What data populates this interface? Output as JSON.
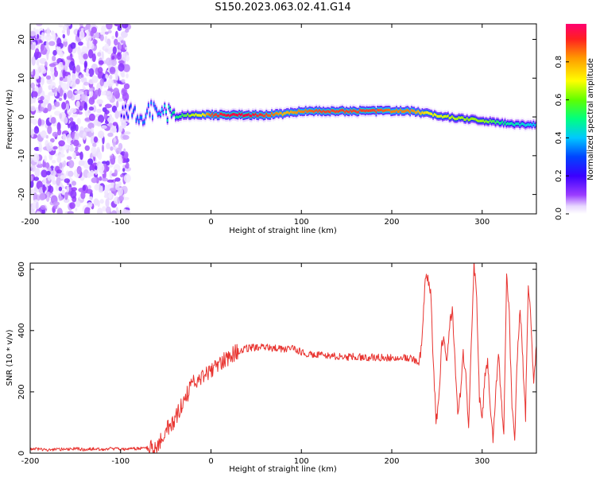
{
  "title": "S150.2023.063.02.41.G14",
  "chart_data": [
    {
      "type": "heatmap",
      "xlabel": "Height of straight line (km)",
      "ylabel": "Frequency (Hz)",
      "xlim": [
        -200,
        360
      ],
      "ylim": [
        -25,
        24
      ],
      "xticks": [
        -200,
        -100,
        0,
        100,
        200,
        300
      ],
      "yticks": [
        -20,
        -10,
        0,
        10,
        20
      ],
      "colorbar": {
        "label": "Normalized spectral amplitude",
        "range": [
          0,
          1
        ],
        "ticks": [
          0.0,
          0.2,
          0.4,
          0.6,
          0.8
        ],
        "tick_labels": [
          "0.0",
          "0.2",
          "0.4",
          "0.6",
          "0.8"
        ],
        "colormap": [
          "#ffffff",
          "#e8d8ff",
          "#9a3cff",
          "#3a00ff",
          "#0033ff",
          "#00c8ff",
          "#00ff80",
          "#a0ff00",
          "#ffff00",
          "#ff8000",
          "#ff0040"
        ]
      },
      "noise_region": [
        -200,
        -92
      ],
      "ridge": [
        {
          "x": -100,
          "y": 1,
          "amp": 0.3
        },
        {
          "x": -90,
          "y": 2,
          "amp": 0.4
        },
        {
          "x": -80,
          "y": -1,
          "amp": 0.45
        },
        {
          "x": -70,
          "y": 2,
          "amp": 0.45
        },
        {
          "x": -60,
          "y": 1,
          "amp": 0.45
        },
        {
          "x": -50,
          "y": 1,
          "amp": 0.55
        },
        {
          "x": -40,
          "y": 0,
          "amp": 0.6
        },
        {
          "x": -30,
          "y": 0.5,
          "amp": 0.65
        },
        {
          "x": -20,
          "y": 0.5,
          "amp": 0.75
        },
        {
          "x": -10,
          "y": 0.5,
          "amp": 0.8
        },
        {
          "x": 0,
          "y": 0.5,
          "amp": 0.95
        },
        {
          "x": 20,
          "y": 0.5,
          "amp": 1.0
        },
        {
          "x": 40,
          "y": 0.5,
          "amp": 1.0
        },
        {
          "x": 60,
          "y": 0.5,
          "amp": 0.95
        },
        {
          "x": 80,
          "y": 0.8,
          "amp": 0.85
        },
        {
          "x": 100,
          "y": 1.5,
          "amp": 0.9
        },
        {
          "x": 120,
          "y": 1.5,
          "amp": 0.95
        },
        {
          "x": 140,
          "y": 1.5,
          "amp": 0.95
        },
        {
          "x": 160,
          "y": 1.5,
          "amp": 0.95
        },
        {
          "x": 180,
          "y": 1.5,
          "amp": 0.95
        },
        {
          "x": 200,
          "y": 1.5,
          "amp": 0.9
        },
        {
          "x": 220,
          "y": 1.5,
          "amp": 0.9
        },
        {
          "x": 240,
          "y": 0.8,
          "amp": 0.8
        },
        {
          "x": 260,
          "y": 0,
          "amp": 0.75
        },
        {
          "x": 280,
          "y": -0.5,
          "amp": 0.7
        },
        {
          "x": 300,
          "y": -1,
          "amp": 0.7
        },
        {
          "x": 320,
          "y": -1.5,
          "amp": 0.6
        },
        {
          "x": 340,
          "y": -2,
          "amp": 0.55
        },
        {
          "x": 360,
          "y": -2,
          "amp": 0.5
        }
      ]
    },
    {
      "type": "line",
      "xlabel": "Height of straight line (km)",
      "ylabel": "SNR (10 * v/v)",
      "xlim": [
        -200,
        360
      ],
      "ylim": [
        0,
        620
      ],
      "xticks": [
        -200,
        -100,
        0,
        100,
        200,
        300
      ],
      "yticks": [
        0,
        200,
        400,
        600
      ],
      "series": [
        {
          "color": "#e8332f",
          "points": [
            [
              -200,
              12
            ],
            [
              -190,
              14
            ],
            [
              -180,
              10
            ],
            [
              -170,
              13
            ],
            [
              -160,
              12
            ],
            [
              -150,
              15
            ],
            [
              -140,
              11
            ],
            [
              -130,
              14
            ],
            [
              -120,
              12
            ],
            [
              -110,
              15
            ],
            [
              -100,
              13
            ],
            [
              -90,
              14
            ],
            [
              -80,
              15
            ],
            [
              -70,
              18
            ],
            [
              -65,
              20
            ],
            [
              -60,
              30
            ],
            [
              -55,
              45
            ],
            [
              -50,
              70
            ],
            [
              -45,
              90
            ],
            [
              -40,
              110
            ],
            [
              -35,
              140
            ],
            [
              -30,
              170
            ],
            [
              -25,
              200
            ],
            [
              -20,
              225
            ],
            [
              -15,
              240
            ],
            [
              -10,
              250
            ],
            [
              -5,
              258
            ],
            [
              0,
              265
            ],
            [
              5,
              280
            ],
            [
              10,
              295
            ],
            [
              15,
              305
            ],
            [
              20,
              315
            ],
            [
              25,
              325
            ],
            [
              30,
              333
            ],
            [
              35,
              338
            ],
            [
              40,
              342
            ],
            [
              50,
              345
            ],
            [
              60,
              345
            ],
            [
              70,
              343
            ],
            [
              80,
              340
            ],
            [
              90,
              340
            ],
            [
              100,
              330
            ],
            [
              110,
              322
            ],
            [
              120,
              320
            ],
            [
              130,
              318
            ],
            [
              140,
              315
            ],
            [
              150,
              313
            ],
            [
              160,
              315
            ],
            [
              170,
              312
            ],
            [
              180,
              313
            ],
            [
              190,
              312
            ],
            [
              200,
              312
            ],
            [
              210,
              312
            ],
            [
              220,
              310
            ],
            [
              225,
              305
            ],
            [
              230,
              290
            ],
            [
              233,
              350
            ],
            [
              237,
              560
            ],
            [
              240,
              575
            ],
            [
              243,
              520
            ],
            [
              246,
              300
            ],
            [
              249,
              100
            ],
            [
              252,
              160
            ],
            [
              255,
              350
            ],
            [
              258,
              380
            ],
            [
              261,
              300
            ],
            [
              264,
              420
            ],
            [
              267,
              470
            ],
            [
              270,
              300
            ],
            [
              273,
              120
            ],
            [
              276,
              200
            ],
            [
              279,
              330
            ],
            [
              282,
              250
            ],
            [
              285,
              80
            ],
            [
              288,
              350
            ],
            [
              291,
              620
            ],
            [
              294,
              500
            ],
            [
              297,
              180
            ],
            [
              300,
              100
            ],
            [
              303,
              260
            ],
            [
              306,
              300
            ],
            [
              309,
              160
            ],
            [
              312,
              40
            ],
            [
              315,
              200
            ],
            [
              318,
              330
            ],
            [
              321,
              180
            ],
            [
              324,
              60
            ],
            [
              327,
              580
            ],
            [
              330,
              450
            ],
            [
              333,
              140
            ],
            [
              336,
              40
            ],
            [
              339,
              320
            ],
            [
              342,
              480
            ],
            [
              345,
              300
            ],
            [
              348,
              120
            ],
            [
              351,
              560
            ],
            [
              354,
              420
            ],
            [
              357,
              220
            ],
            [
              360,
              350
            ]
          ]
        }
      ]
    }
  ]
}
